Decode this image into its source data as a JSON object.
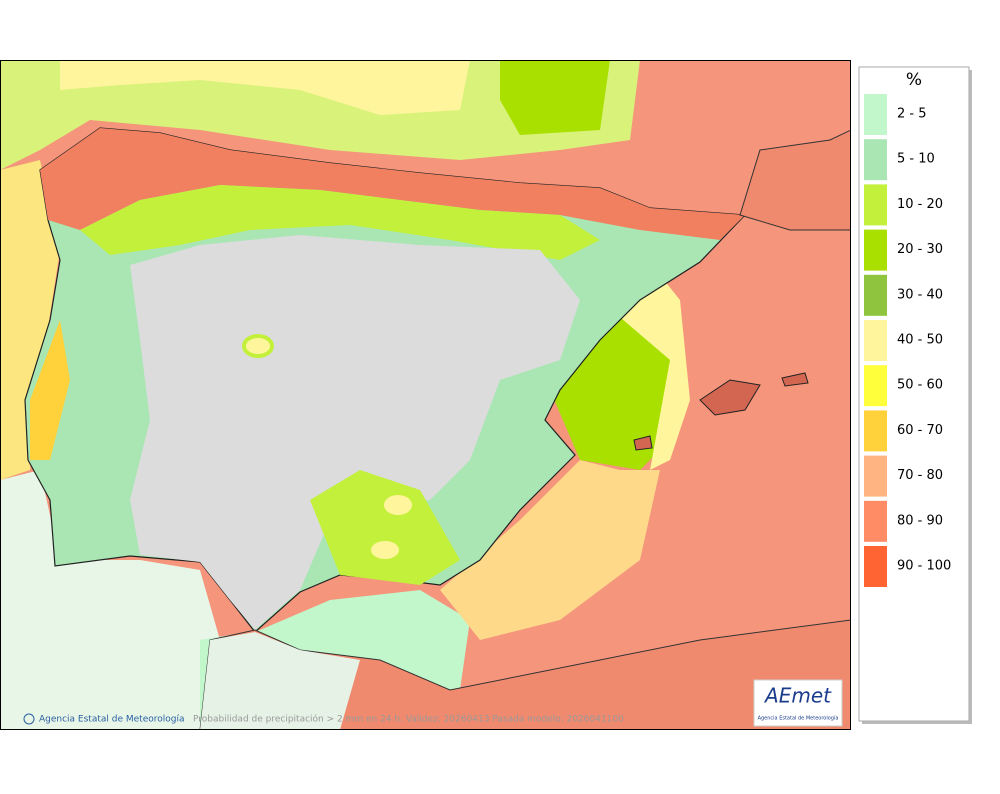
{
  "map": {
    "footer_credit": "Agencia Estatal de Meteorología",
    "footer_caption": "Probabilidad de precipitación > 2 mm en 24 h. Validez: 20260413 Pasada modelo: 2026041100",
    "logo": {
      "mark": "AEmet",
      "text": "Agencia Estatal de Meteorología"
    }
  },
  "legend": {
    "title": "%",
    "items": [
      {
        "label": "2 - 5",
        "color": "#c2f7cb"
      },
      {
        "label": "5 - 10",
        "color": "#a9e6b4"
      },
      {
        "label": "10 - 20",
        "color": "#c3f03a"
      },
      {
        "label": "20 - 30",
        "color": "#a9e000"
      },
      {
        "label": "30 - 40",
        "color": "#8fc43e"
      },
      {
        "label": "40 - 50",
        "color": "#fff59c"
      },
      {
        "label": "50 - 60",
        "color": "#ffff3c"
      },
      {
        "label": "60 - 70",
        "color": "#ffd23c"
      },
      {
        "label": "70 - 80",
        "color": "#ffb482"
      },
      {
        "label": "80 - 90",
        "color": "#ff8c64"
      },
      {
        "label": "90 - 100",
        "color": "#ff6432"
      }
    ]
  }
}
